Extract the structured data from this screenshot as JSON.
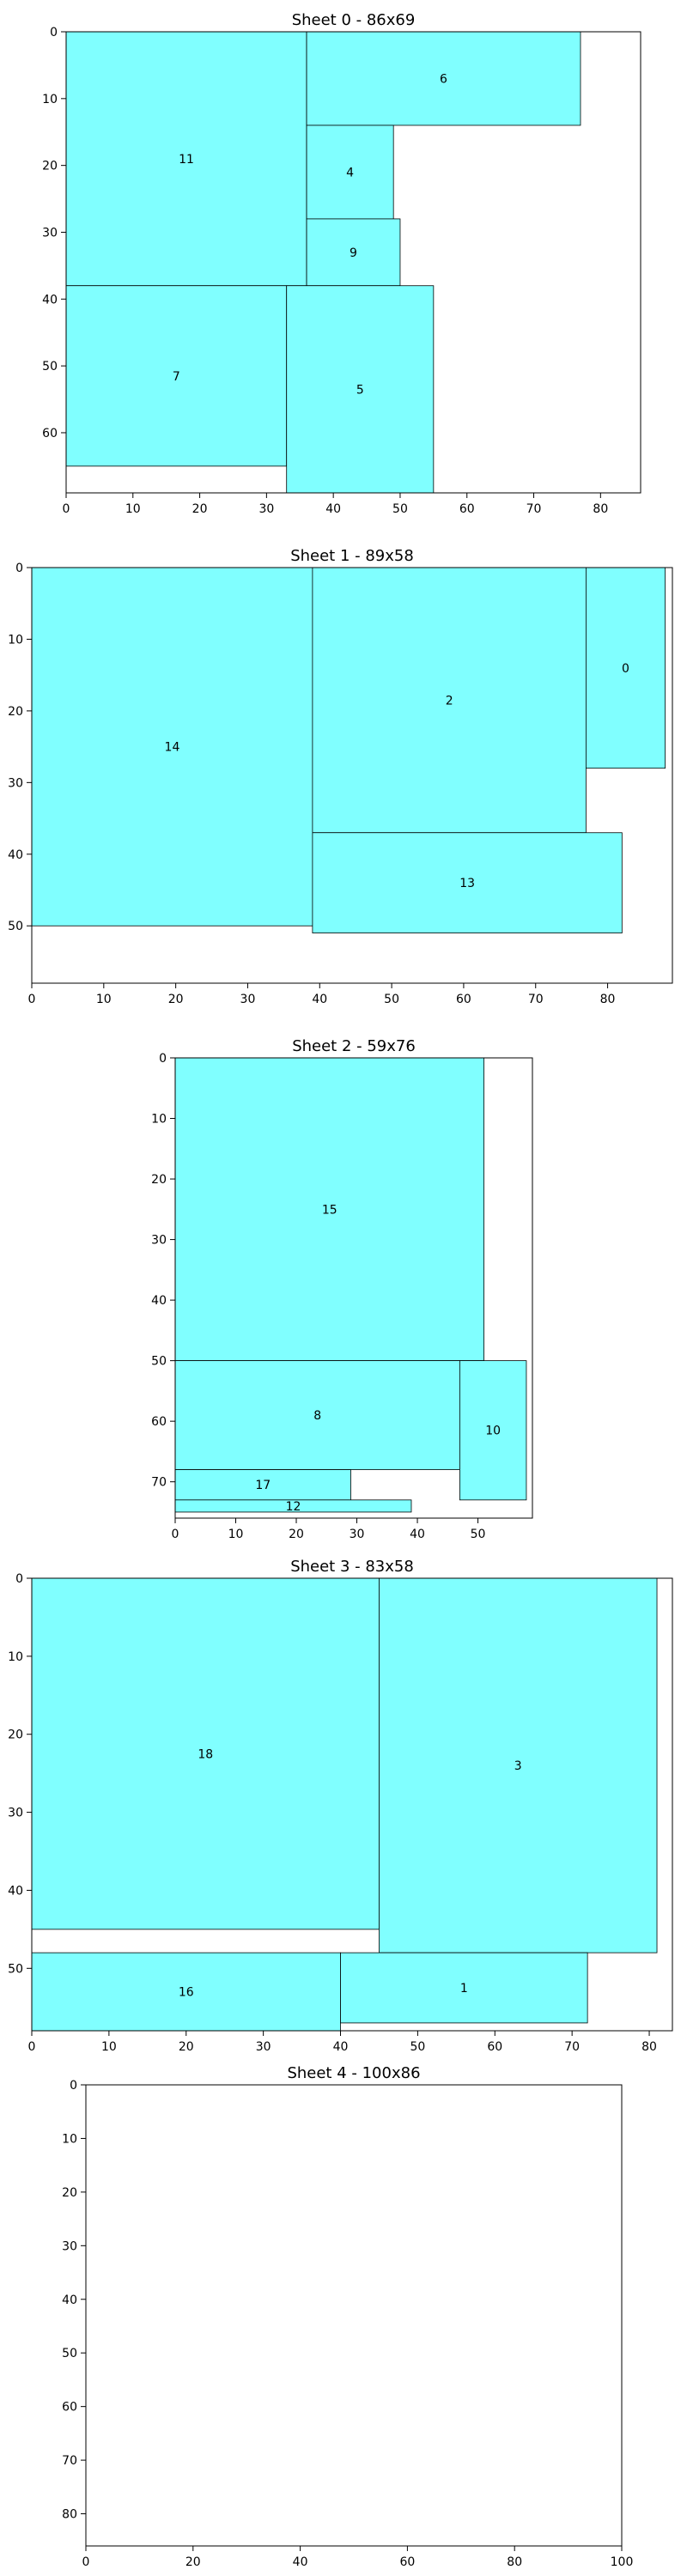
{
  "chart_data": [
    {
      "type": "packing-layout",
      "title": "Sheet 0 - 86x69",
      "xlim": [
        0,
        86
      ],
      "ylim": [
        69,
        0
      ],
      "xticks": [
        0,
        10,
        20,
        30,
        40,
        50,
        60,
        70,
        80
      ],
      "yticks": [
        0,
        10,
        20,
        30,
        40,
        50,
        60
      ],
      "rects": [
        {
          "id": "11",
          "x": 0,
          "y": 0,
          "w": 36,
          "h": 38
        },
        {
          "id": "6",
          "x": 36,
          "y": 0,
          "w": 41,
          "h": 14
        },
        {
          "id": "4",
          "x": 36,
          "y": 14,
          "w": 13,
          "h": 14
        },
        {
          "id": "9",
          "x": 36,
          "y": 28,
          "w": 14,
          "h": 10
        },
        {
          "id": "7",
          "x": 0,
          "y": 38,
          "w": 33,
          "h": 27
        },
        {
          "id": "5",
          "x": 33,
          "y": 38,
          "w": 22,
          "h": 31
        }
      ]
    },
    {
      "type": "packing-layout",
      "title": "Sheet 1 - 89x58",
      "xlim": [
        0,
        89
      ],
      "ylim": [
        58,
        0
      ],
      "xticks": [
        0,
        10,
        20,
        30,
        40,
        50,
        60,
        70,
        80
      ],
      "yticks": [
        0,
        10,
        20,
        30,
        40,
        50
      ],
      "rects": [
        {
          "id": "14",
          "x": 0,
          "y": 0,
          "w": 39,
          "h": 50
        },
        {
          "id": "2",
          "x": 39,
          "y": 0,
          "w": 38,
          "h": 37
        },
        {
          "id": "0",
          "x": 77,
          "y": 0,
          "w": 11,
          "h": 28
        },
        {
          "id": "13",
          "x": 39,
          "y": 37,
          "w": 43,
          "h": 14
        }
      ]
    },
    {
      "type": "packing-layout",
      "title": "Sheet 2 - 59x76",
      "xlim": [
        0,
        59
      ],
      "ylim": [
        76,
        0
      ],
      "xticks": [
        0,
        10,
        20,
        30,
        40,
        50
      ],
      "yticks": [
        0,
        10,
        20,
        30,
        40,
        50,
        60,
        70
      ],
      "rects": [
        {
          "id": "15",
          "x": 0,
          "y": 0,
          "w": 51,
          "h": 50
        },
        {
          "id": "8",
          "x": 0,
          "y": 50,
          "w": 47,
          "h": 18
        },
        {
          "id": "10",
          "x": 47,
          "y": 50,
          "w": 11,
          "h": 23
        },
        {
          "id": "17",
          "x": 0,
          "y": 68,
          "w": 29,
          "h": 5
        },
        {
          "id": "12",
          "x": 0,
          "y": 73,
          "w": 39,
          "h": 2
        }
      ]
    },
    {
      "type": "packing-layout",
      "title": "Sheet 3 - 83x58",
      "xlim": [
        0,
        83
      ],
      "ylim": [
        58,
        0
      ],
      "xticks": [
        0,
        10,
        20,
        30,
        40,
        50,
        60,
        70,
        80
      ],
      "yticks": [
        0,
        10,
        20,
        30,
        40,
        50
      ],
      "rects": [
        {
          "id": "18",
          "x": 0,
          "y": 0,
          "w": 45,
          "h": 45
        },
        {
          "id": "3",
          "x": 45,
          "y": 0,
          "w": 36,
          "h": 48
        },
        {
          "id": "16",
          "x": 0,
          "y": 48,
          "w": 40,
          "h": 10
        },
        {
          "id": "1",
          "x": 40,
          "y": 48,
          "w": 32,
          "h": 9
        }
      ]
    },
    {
      "type": "packing-layout",
      "title": "Sheet 4 - 100x86",
      "xlim": [
        0,
        100
      ],
      "ylim": [
        86,
        0
      ],
      "xticks": [
        0,
        20,
        40,
        60,
        80,
        100
      ],
      "yticks": [
        0,
        10,
        20,
        30,
        40,
        50,
        60,
        70,
        80
      ],
      "rects": []
    }
  ]
}
